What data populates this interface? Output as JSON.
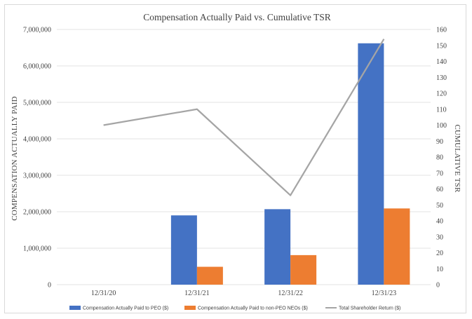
{
  "chart_data": {
    "type": "bar",
    "title": "Compensation Actually Paid vs. Cumulative TSR",
    "categories": [
      "12/31/20",
      "12/31/21",
      "12/31/22",
      "12/31/23"
    ],
    "series": [
      {
        "name": "Compensation Actually Paid to PEO ($)",
        "kind": "bar",
        "axis": "left",
        "color": "#4472c4",
        "values": [
          0,
          1900000,
          2070000,
          6620000
        ]
      },
      {
        "name": "Compensation Actually Paid to non-PEO NEOs ($)",
        "kind": "bar",
        "axis": "left",
        "color": "#ed7d31",
        "values": [
          0,
          490000,
          810000,
          2090000
        ]
      },
      {
        "name": "Total Shareholder Return ($)",
        "kind": "line",
        "axis": "right",
        "color": "#a5a5a5",
        "values": [
          100,
          110,
          56,
          154
        ]
      }
    ],
    "ylabel": "COMPENSATION ACTUALLY PAID",
    "ylabel_right": "CUMULATIVE TSR",
    "ylim": [
      0,
      7000000
    ],
    "ylim_right": [
      0,
      160
    ],
    "y_ticks": [
      "0",
      "1,000,000",
      "2,000,000",
      "3,000,000",
      "4,000,000",
      "5,000,000",
      "6,000,000",
      "7,000,000"
    ],
    "y_ticks_right": [
      "0",
      "10",
      "20",
      "30",
      "40",
      "50",
      "60",
      "70",
      "80",
      "90",
      "100",
      "110",
      "120",
      "130",
      "140",
      "150",
      "160"
    ],
    "grid": true,
    "legend_position": "bottom"
  }
}
